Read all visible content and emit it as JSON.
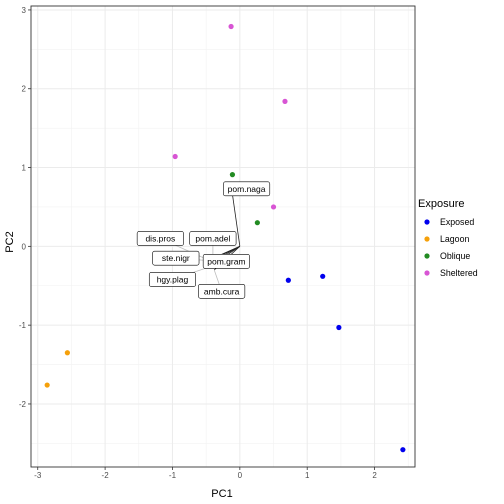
{
  "chart_data": {
    "type": "scatter",
    "xlabel": "PC1",
    "ylabel": "PC2",
    "xlim": [
      -3.1,
      2.6
    ],
    "ylim": [
      -2.8,
      3.05
    ],
    "x_ticks": [
      -3,
      -2,
      -1,
      0,
      1,
      2
    ],
    "y_ticks": [
      -2,
      -1,
      0,
      1,
      2,
      3
    ],
    "grid": true,
    "legend": {
      "title": "Exposure",
      "placement": "right",
      "entries": [
        {
          "name": "Exposed",
          "color": "#0000ee"
        },
        {
          "name": "Lagoon",
          "color": "#f5a00a"
        },
        {
          "name": "Oblique",
          "color": "#228b22"
        },
        {
          "name": "Sheltered",
          "color": "#d855d4"
        }
      ]
    },
    "series": [
      {
        "name": "Exposed",
        "color": "#0000ee",
        "points": [
          [
            0.72,
            -0.43
          ],
          [
            1.23,
            -0.38
          ],
          [
            1.47,
            -1.03
          ],
          [
            2.42,
            -2.58
          ]
        ]
      },
      {
        "name": "Lagoon",
        "color": "#f5a00a",
        "points": [
          [
            -2.56,
            -1.35
          ],
          [
            -2.86,
            -1.76
          ]
        ]
      },
      {
        "name": "Oblique",
        "color": "#228b22",
        "points": [
          [
            -0.11,
            0.91
          ],
          [
            0.26,
            0.3
          ]
        ]
      },
      {
        "name": "Sheltered",
        "color": "#d855d4",
        "points": [
          [
            -0.13,
            2.79
          ],
          [
            0.67,
            1.84
          ],
          [
            -0.96,
            1.14
          ],
          [
            0.5,
            0.5
          ]
        ]
      }
    ],
    "loadings": [
      {
        "label": "pom.naga",
        "x": -0.12,
        "y": 0.72,
        "lx": 0.1,
        "ly": 0.73
      },
      {
        "label": "dis.pros",
        "x": -0.45,
        "y": -0.18,
        "lx": -1.18,
        "ly": 0.1
      },
      {
        "label": "pom.adel",
        "x": -0.4,
        "y": -0.16,
        "lx": -0.4,
        "ly": 0.1
      },
      {
        "label": "ste.nigr",
        "x": -0.48,
        "y": -0.18,
        "lx": -0.95,
        "ly": -0.15
      },
      {
        "label": "pom.gram",
        "x": -0.42,
        "y": -0.2,
        "lx": -0.2,
        "ly": -0.19
      },
      {
        "label": "hgy.plag",
        "x": -0.45,
        "y": -0.26,
        "lx": -1.0,
        "ly": -0.42
      },
      {
        "label": "amb.cura",
        "x": -0.38,
        "y": -0.3,
        "lx": -0.27,
        "ly": -0.57
      }
    ]
  }
}
